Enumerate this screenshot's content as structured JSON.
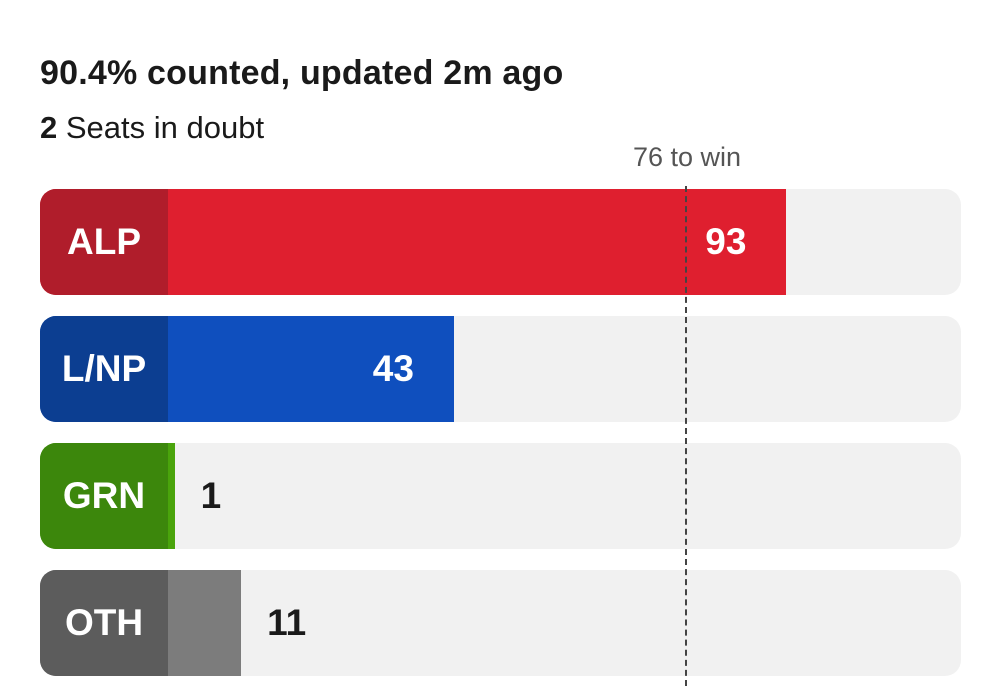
{
  "header": {
    "status": "90.4% counted, updated 2m ago",
    "doubt_count": "2",
    "doubt_label": "Seats in doubt"
  },
  "chart_data": {
    "type": "bar",
    "orientation": "horizontal",
    "categories": [
      "ALP",
      "L/NP",
      "GRN",
      "OTH"
    ],
    "values": [
      93,
      43,
      1,
      11
    ],
    "value_labels": [
      "93",
      "43",
      "1",
      "11"
    ],
    "majority_threshold": 76,
    "majority_label": "76 to win",
    "colors": [
      "#df1f2f",
      "#0f4fbe",
      "#4aa40c",
      "#7c7c7c"
    ],
    "tag_colors": [
      "#b01d2b",
      "#0c3e91",
      "#3c870c",
      "#5c5c5c"
    ]
  }
}
